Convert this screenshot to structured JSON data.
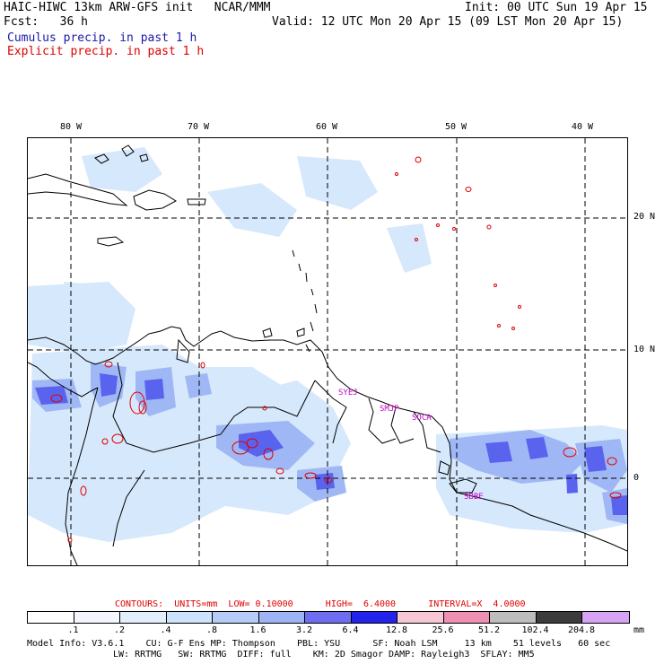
{
  "header": {
    "line1_left": "HAIC-HIWC 13km ARW-GFS init   NCAR/MMM",
    "line1_right": "Init: 00 UTC Sun 19 Apr 15",
    "line2_left": "Fcst:   36 h",
    "line2_right": "Valid: 12 UTC Mon 20 Apr 15 (09 LST Mon 20 Apr 15)",
    "legend_cumulus": "Cumulus precip. in past 1 h",
    "legend_explicit": "Explicit precip. in past 1 h"
  },
  "map": {
    "lon_labels": [
      "80 W",
      "70 W",
      "60 W",
      "50 W",
      "40 W"
    ],
    "lat_labels": [
      "20 N",
      "10 N",
      "0"
    ],
    "stations": [
      "SYEJ",
      "SMJP",
      "SOCA",
      "SBBE"
    ],
    "colors": {
      "coast": "#000000",
      "grid": "#000000",
      "cumulus_light": "#cfe4fb",
      "cumulus_mid": "#9fb8f5",
      "cumulus_dark": "#5a63ee",
      "explicit_contour": "#e00000",
      "station": "#c800c8"
    }
  },
  "contours": {
    "label": "CONTOURS:  UNITS=mm  LOW= 0.10000      HIGH=  6.4000      INTERVAL=X  4.0000"
  },
  "colorbar": {
    "ticks": [
      ".1",
      ".2",
      ".4",
      ".8",
      "1.6",
      "3.2",
      "6.4",
      "12.8",
      "25.6",
      "51.2",
      "102.4",
      "204.8"
    ],
    "unit": "mm",
    "colors": [
      "#ffffff",
      "#f3f7fd",
      "#e2eefc",
      "#cde2fb",
      "#b5ccf7",
      "#9fb4f4",
      "#6d6ff0",
      "#2323ec",
      "#f6c8d6",
      "#ee8fb4",
      "#bdbdbd",
      "#3c3c3c",
      "#d7a3f3"
    ]
  },
  "model_info": {
    "line1": "Model Info: V3.6.1    CU: G-F Ens MP: Thompson    PBL: YSU      SF: Noah LSM     13 km    51 levels   60 sec",
    "line2": "LW: RRTMG   SW: RRTMG  DIFF: full    KM: 2D Smagor DAMP: Rayleigh3  SFLAY: MM5"
  }
}
